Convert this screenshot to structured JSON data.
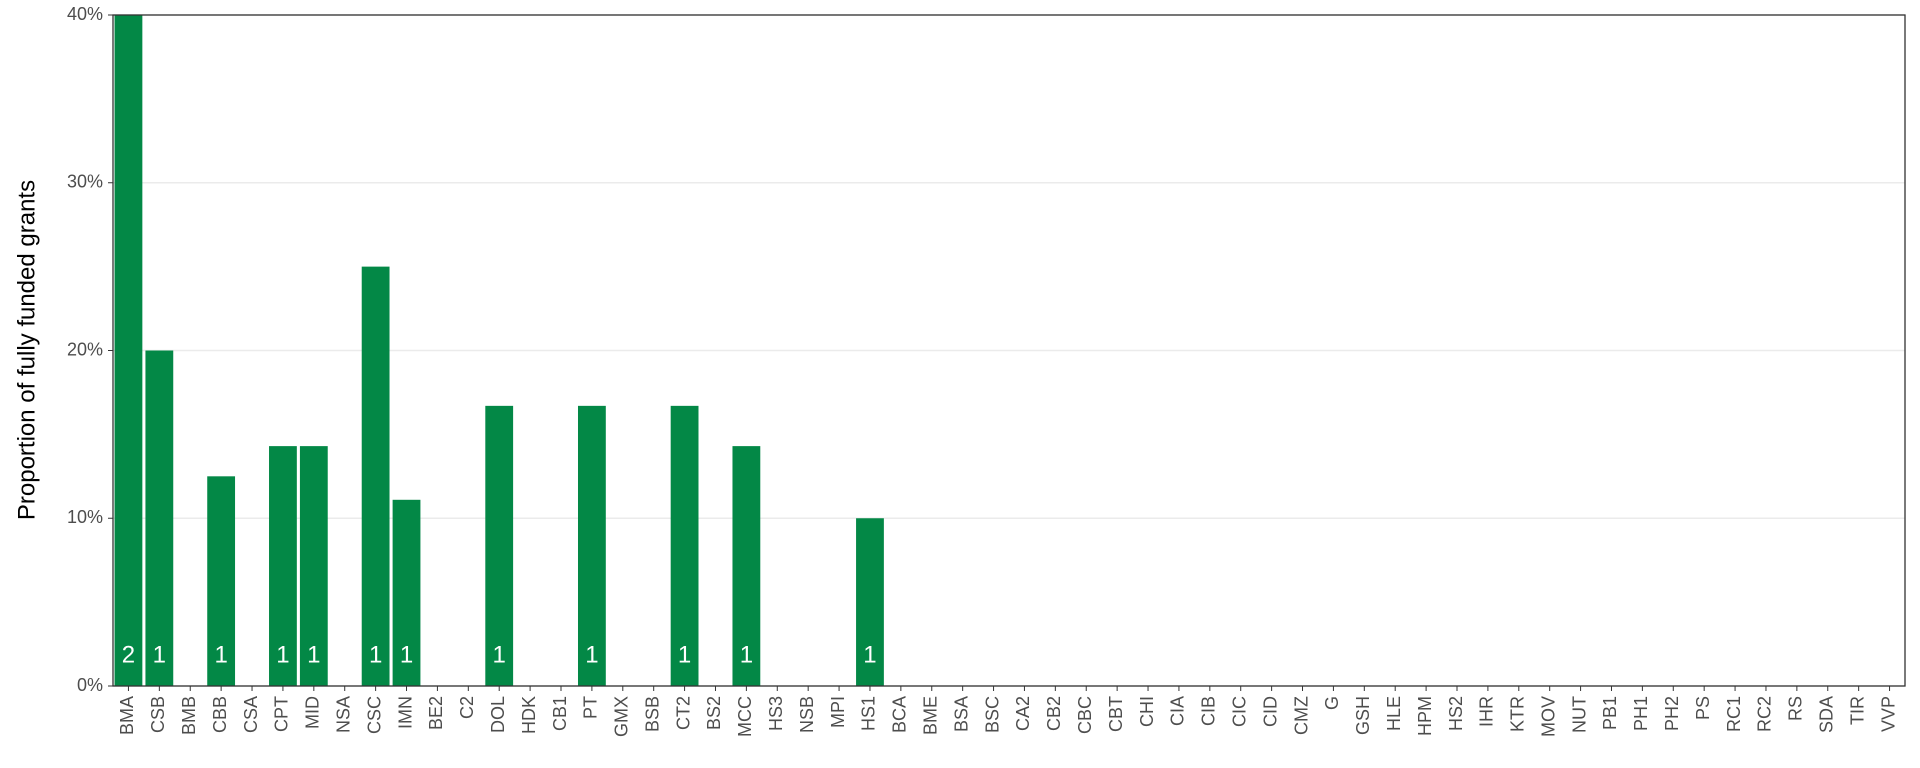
{
  "chart_data": {
    "type": "bar",
    "y_label": "Proportion of fully funded grants",
    "categories": [
      "BMA",
      "CSB",
      "BMB",
      "CBB",
      "CSA",
      "CPT",
      "MID",
      "NSA",
      "CSC",
      "IMN",
      "BE2",
      "C2",
      "DOL",
      "HDK",
      "CB1",
      "PT",
      "GMX",
      "BSB",
      "CT2",
      "BS2",
      "MCC",
      "HS3",
      "NSB",
      "MPI",
      "HS1",
      "BCA",
      "BME",
      "BSA",
      "BSC",
      "CA2",
      "CB2",
      "CBC",
      "CBT",
      "CHI",
      "CIA",
      "CIB",
      "CIC",
      "CID",
      "CMZ",
      "G",
      "GSH",
      "HLE",
      "HPM",
      "HS2",
      "IHR",
      "KTR",
      "MOV",
      "NUT",
      "PB1",
      "PH1",
      "PH2",
      "PS",
      "RC1",
      "RC2",
      "RS",
      "SDA",
      "TIR",
      "VVP"
    ],
    "values": [
      40,
      20,
      0,
      12.5,
      0,
      14.3,
      14.3,
      0,
      25,
      11.1,
      0,
      0,
      16.7,
      0,
      0,
      16.7,
      0,
      0,
      16.7,
      0,
      14.3,
      0,
      0,
      0,
      10,
      0,
      0,
      0,
      0,
      0,
      0,
      0,
      0,
      0,
      0,
      0,
      0,
      0,
      0,
      0,
      0,
      0,
      0,
      0,
      0,
      0,
      0,
      0,
      0,
      0,
      0,
      0,
      0,
      0,
      0,
      0,
      0,
      0
    ],
    "counts": [
      2,
      1,
      null,
      1,
      null,
      1,
      1,
      null,
      1,
      1,
      null,
      null,
      1,
      null,
      null,
      1,
      null,
      null,
      1,
      null,
      1,
      null,
      null,
      null,
      1,
      null,
      null,
      null,
      null,
      null,
      null,
      null,
      null,
      null,
      null,
      null,
      null,
      null,
      null,
      null,
      null,
      null,
      null,
      null,
      null,
      null,
      null,
      null,
      null,
      null,
      null,
      null,
      null,
      null,
      null,
      null,
      null,
      null
    ],
    "color": "#038846",
    "ylim": [
      0,
      40
    ],
    "yticks": [
      {
        "value": 0,
        "label": "0%"
      },
      {
        "value": 10,
        "label": "10%"
      },
      {
        "value": 20,
        "label": "20%"
      },
      {
        "value": 30,
        "label": "30%"
      },
      {
        "value": 40,
        "label": "40%"
      }
    ],
    "grid": true
  }
}
